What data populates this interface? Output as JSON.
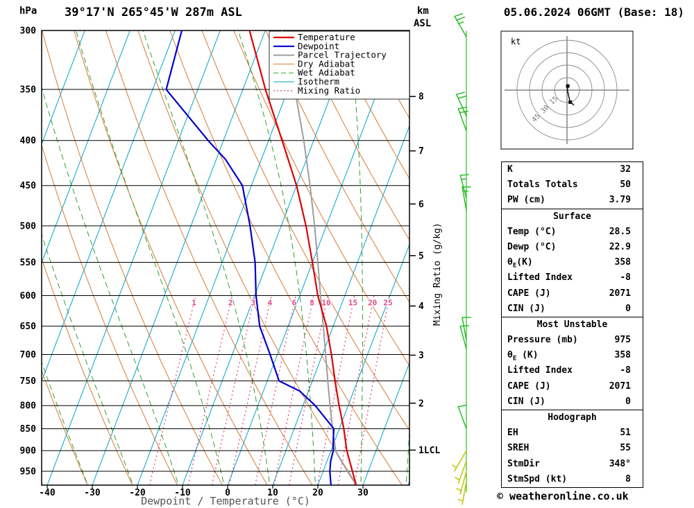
{
  "header": {
    "title": "39°17'N 265°45'W 287m ASL",
    "datetime": "05.06.2024 06GMT (Base: 18)"
  },
  "axes": {
    "pressure_unit": "hPa",
    "km_label": "km",
    "asl_label": "ASL",
    "temp_axis_label": "Dewpoint / Temperature (°C)",
    "mixing_ratio_axis_label": "Mixing Ratio (g/kg)",
    "pressure_ticks_hpa": [
      300,
      350,
      400,
      450,
      500,
      550,
      600,
      650,
      700,
      750,
      800,
      850,
      900,
      950
    ],
    "temp_ticks_c": [
      -40,
      -30,
      -20,
      -10,
      0,
      10,
      20,
      30
    ],
    "km_ticks": [
      {
        "label": "8",
        "pressure_hpa": 356.5
      },
      {
        "label": "7",
        "pressure_hpa": 411.0
      },
      {
        "label": "6",
        "pressure_hpa": 472.2
      },
      {
        "label": "5",
        "pressure_hpa": 540.5
      },
      {
        "label": "4",
        "pressure_hpa": 616.6
      },
      {
        "label": "3",
        "pressure_hpa": 701.2
      },
      {
        "label": "2",
        "pressure_hpa": 795.0
      },
      {
        "label": "1LCL",
        "pressure_hpa": 898.8
      }
    ]
  },
  "legend": {
    "items": [
      {
        "label": "Temperature",
        "color": "#dd0000",
        "style": "solid",
        "width": 2.2
      },
      {
        "label": "Dewpoint",
        "color": "#0000cc",
        "style": "solid",
        "width": 2.2
      },
      {
        "label": "Parcel Trajectory",
        "color": "#9e9e9e",
        "style": "solid",
        "width": 2
      },
      {
        "label": "Dry Adiabat",
        "color": "#d57b33",
        "style": "solid",
        "width": 1
      },
      {
        "label": "Wet Adiabat",
        "color": "#2da02d",
        "style": "dashed",
        "width": 1
      },
      {
        "label": "Isotherm",
        "color": "#00a2c8",
        "style": "solid",
        "width": 1
      },
      {
        "label": "Mixing Ratio",
        "color": "#e34684",
        "style": "dotted",
        "width": 1.3
      }
    ]
  },
  "chart_data": {
    "type": "skewt_log_p_sounding",
    "pressure_range_hpa": [
      300,
      985
    ],
    "temp_axis_range_c": [
      -40,
      40
    ],
    "isotherm_step_c": 10,
    "dry_adiabat_theta_c": {
      "min": -60,
      "max": 160,
      "step": 10
    },
    "wet_adiabat_thetaw_c": {
      "min": -60,
      "max": 40,
      "step": 10
    },
    "mixing_ratio_lines_gkg": [
      1,
      2,
      3,
      4,
      6,
      8,
      10,
      15,
      20,
      25
    ],
    "temperature_profile_p_t": [
      [
        985,
        28.5
      ],
      [
        950,
        26.5
      ],
      [
        900,
        23.5
      ],
      [
        850,
        21.0
      ],
      [
        800,
        18.0
      ],
      [
        750,
        15.0
      ],
      [
        700,
        12.0
      ],
      [
        650,
        8.5
      ],
      [
        600,
        4.0
      ],
      [
        550,
        0.0
      ],
      [
        500,
        -4.5
      ],
      [
        450,
        -10.0
      ],
      [
        400,
        -17.0
      ],
      [
        350,
        -25.0
      ],
      [
        300,
        -33.5
      ]
    ],
    "dewpoint_profile_p_t": [
      [
        985,
        22.9
      ],
      [
        950,
        21.5
      ],
      [
        925,
        20.8
      ],
      [
        900,
        20.5
      ],
      [
        875,
        19.6
      ],
      [
        850,
        18.8
      ],
      [
        800,
        12.7
      ],
      [
        770,
        8.0
      ],
      [
        750,
        2.6
      ],
      [
        700,
        -1.6
      ],
      [
        650,
        -6.3
      ],
      [
        600,
        -9.7
      ],
      [
        550,
        -12.7
      ],
      [
        500,
        -16.9
      ],
      [
        450,
        -22.0
      ],
      [
        420,
        -28.0
      ],
      [
        400,
        -33.4
      ],
      [
        350,
        -47.0
      ],
      [
        300,
        -48.5
      ]
    ],
    "parcel_profile_p_t": [
      [
        985,
        28.5
      ],
      [
        950,
        25.4
      ],
      [
        903,
        21.2
      ],
      [
        850,
        18.5
      ],
      [
        800,
        16.0
      ],
      [
        750,
        13.4
      ],
      [
        700,
        10.7
      ],
      [
        650,
        7.8
      ],
      [
        600,
        4.6
      ],
      [
        550,
        1.2
      ],
      [
        500,
        -2.6
      ],
      [
        450,
        -7.0
      ],
      [
        400,
        -12.2
      ],
      [
        350,
        -18.5
      ],
      [
        300,
        -26.3
      ]
    ]
  },
  "wind_barbs": [
    {
      "pressure_hpa": 975,
      "dir_deg": 190,
      "speed_kt": 5,
      "color": "#c2c400"
    },
    {
      "pressure_hpa": 950,
      "dir_deg": 195,
      "speed_kt": 5,
      "color": "#c2c400"
    },
    {
      "pressure_hpa": 925,
      "dir_deg": 200,
      "speed_kt": 5,
      "color": "#c2c400"
    },
    {
      "pressure_hpa": 900,
      "dir_deg": 210,
      "speed_kt": 5,
      "color": "#c2c400"
    },
    {
      "pressure_hpa": 850,
      "dir_deg": 340,
      "speed_kt": 10,
      "color": "#26bd26"
    },
    {
      "pressure_hpa": 690,
      "dir_deg": 345,
      "speed_kt": 10,
      "color": "#26bd26"
    },
    {
      "pressure_hpa": 675,
      "dir_deg": 350,
      "speed_kt": 10,
      "color": "#26bd26"
    },
    {
      "pressure_hpa": 480,
      "dir_deg": 350,
      "speed_kt": 15,
      "color": "#26bd26"
    },
    {
      "pressure_hpa": 465,
      "dir_deg": 345,
      "speed_kt": 15,
      "color": "#26bd26"
    },
    {
      "pressure_hpa": 390,
      "dir_deg": 340,
      "speed_kt": 20,
      "color": "#26bd26"
    },
    {
      "pressure_hpa": 375,
      "dir_deg": 335,
      "speed_kt": 20,
      "color": "#26bd26"
    },
    {
      "pressure_hpa": 305,
      "dir_deg": 330,
      "speed_kt": 25,
      "color": "#26bd26"
    }
  ],
  "hodograph": {
    "unit_label": "kt",
    "rings_kt": [
      15,
      30,
      45,
      60
    ],
    "ring_labels": [
      "15",
      "30",
      "45"
    ],
    "trace_uv_kt": [
      [
        0.9,
        4.9
      ],
      [
        0.5,
        0.0
      ],
      [
        2.6,
        -9.7
      ],
      [
        3.9,
        -14.5
      ],
      [
        8.5,
        -18.1
      ]
    ],
    "marker_indices": [
      0,
      3
    ]
  },
  "stats": {
    "sections": [
      {
        "header": null,
        "rows": [
          [
            "K",
            "32"
          ],
          [
            "Totals Totals",
            "50"
          ],
          [
            "PW (cm)",
            "3.79"
          ]
        ]
      },
      {
        "header": "Surface",
        "rows": [
          [
            "Temp (°C)",
            "28.5"
          ],
          [
            "Dewp (°C)",
            "22.9"
          ],
          [
            "θE(K)",
            "358"
          ],
          [
            "Lifted Index",
            "-8"
          ],
          [
            "CAPE (J)",
            "2071"
          ],
          [
            "CIN (J)",
            "0"
          ]
        ]
      },
      {
        "header": "Most Unstable",
        "rows": [
          [
            "Pressure (mb)",
            "975"
          ],
          [
            "θE (K)",
            "358"
          ],
          [
            "Lifted Index",
            "-8"
          ],
          [
            "CAPE (J)",
            "2071"
          ],
          [
            "CIN (J)",
            "0"
          ]
        ]
      },
      {
        "header": "Hodograph",
        "rows": [
          [
            "EH",
            "51"
          ],
          [
            "SREH",
            "55"
          ],
          [
            "StmDir",
            "348°"
          ],
          [
            "StmSpd (kt)",
            "8"
          ]
        ]
      }
    ]
  },
  "footer": {
    "copyright": "© weatheronline.co.uk"
  },
  "colors": {
    "pressure_line": "#000000",
    "temperature": "#dd0000",
    "dewpoint": "#0000cc",
    "parcel": "#9e9e9e",
    "dry_adiabat": "#d57b33",
    "wet_adiabat": "#2da02d",
    "isotherm": "#00a2c8",
    "mixing_ratio": "#e34684",
    "barb_green": "#26bd26",
    "barb_yellow": "#c2c400",
    "hodograph_ring": "#888888",
    "hodograph_trace": "#111111"
  }
}
